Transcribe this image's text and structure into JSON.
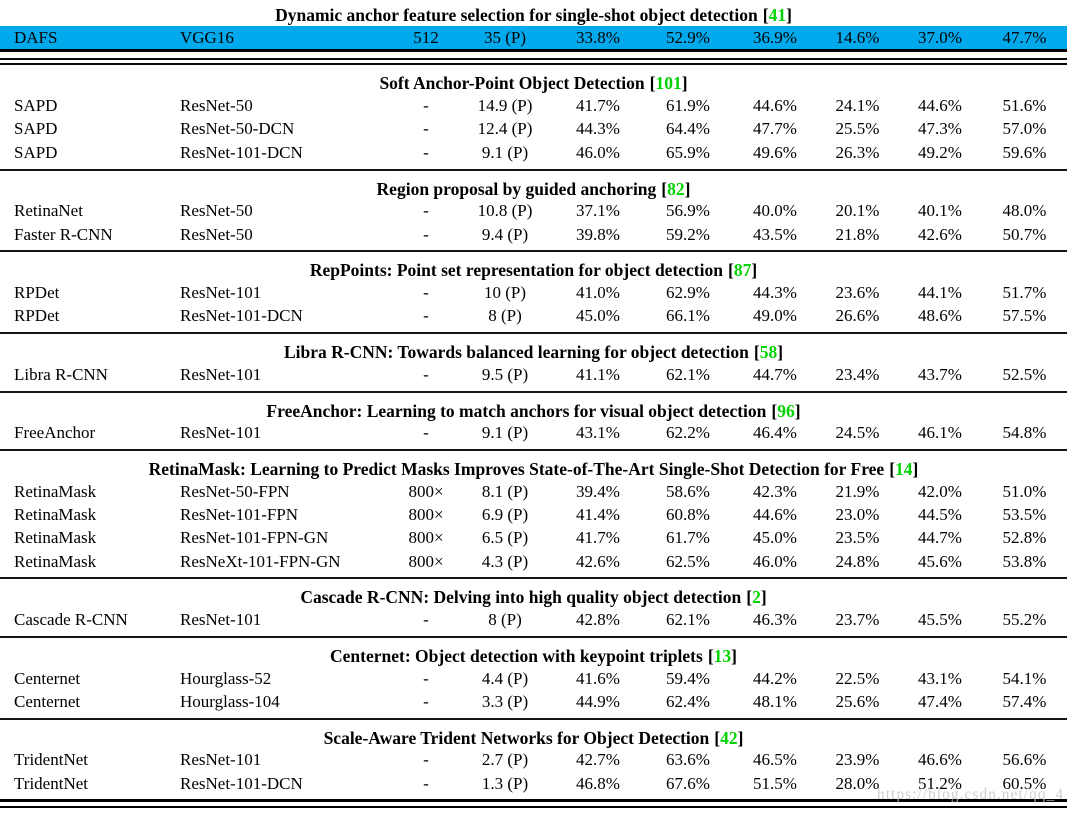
{
  "page": {
    "watermark": "https://blog.csdn.net/qq_4",
    "highlight_color": "#00a8ec",
    "citation_color": "#00d400"
  },
  "sections": [
    {
      "title": "Dynamic anchor feature selection for single-shot object detection",
      "citation": "41",
      "separator": "heavy",
      "rows": [
        {
          "highlighted": true,
          "cells": [
            "DAFS",
            "VGG16",
            "512",
            "35 (P)",
            "33.8%",
            "52.9%",
            "36.9%",
            "14.6%",
            "37.0%",
            "47.7%"
          ]
        }
      ]
    },
    {
      "title": "Soft Anchor-Point Object Detection",
      "citation": "101",
      "separator": "line",
      "rows": [
        {
          "highlighted": false,
          "cells": [
            "SAPD",
            "ResNet-50",
            "-",
            "14.9 (P)",
            "41.7%",
            "61.9%",
            "44.6%",
            "24.1%",
            "44.6%",
            "51.6%"
          ]
        },
        {
          "highlighted": false,
          "cells": [
            "SAPD",
            "ResNet-50-DCN",
            "-",
            "12.4 (P)",
            "44.3%",
            "64.4%",
            "47.7%",
            "25.5%",
            "47.3%",
            "57.0%"
          ]
        },
        {
          "highlighted": false,
          "cells": [
            "SAPD",
            "ResNet-101-DCN",
            "-",
            "9.1 (P)",
            "46.0%",
            "65.9%",
            "49.6%",
            "26.3%",
            "49.2%",
            "59.6%"
          ]
        }
      ]
    },
    {
      "title": "Region proposal by guided anchoring",
      "citation": "82",
      "separator": "line",
      "rows": [
        {
          "highlighted": false,
          "cells": [
            "RetinaNet",
            "ResNet-50",
            "-",
            "10.8 (P)",
            "37.1%",
            "56.9%",
            "40.0%",
            "20.1%",
            "40.1%",
            "48.0%"
          ]
        },
        {
          "highlighted": false,
          "cells": [
            "Faster R-CNN",
            "ResNet-50",
            "-",
            "9.4 (P)",
            "39.8%",
            "59.2%",
            "43.5%",
            "21.8%",
            "42.6%",
            "50.7%"
          ]
        }
      ]
    },
    {
      "title": "RepPoints: Point set representation for object detection",
      "citation": "87",
      "separator": "line",
      "rows": [
        {
          "highlighted": false,
          "cells": [
            "RPDet",
            "ResNet-101",
            "-",
            "10 (P)",
            "41.0%",
            "62.9%",
            "44.3%",
            "23.6%",
            "44.1%",
            "51.7%"
          ]
        },
        {
          "highlighted": false,
          "cells": [
            "RPDet",
            "ResNet-101-DCN",
            "-",
            "8 (P)",
            "45.0%",
            "66.1%",
            "49.0%",
            "26.6%",
            "48.6%",
            "57.5%"
          ]
        }
      ]
    },
    {
      "title": "Libra R-CNN: Towards balanced learning for object detection",
      "citation": "58",
      "separator": "line",
      "rows": [
        {
          "highlighted": false,
          "cells": [
            "Libra R-CNN",
            "ResNet-101",
            "-",
            "9.5 (P)",
            "41.1%",
            "62.1%",
            "44.7%",
            "23.4%",
            "43.7%",
            "52.5%"
          ]
        }
      ]
    },
    {
      "title": "FreeAnchor: Learning to match anchors for visual object detection",
      "citation": "96",
      "separator": "line",
      "rows": [
        {
          "highlighted": false,
          "cells": [
            "FreeAnchor",
            "ResNet-101",
            "-",
            "9.1 (P)",
            "43.1%",
            "62.2%",
            "46.4%",
            "24.5%",
            "46.1%",
            "54.8%"
          ]
        }
      ]
    },
    {
      "title": "RetinaMask: Learning to Predict Masks Improves State-of-The-Art Single-Shot Detection for Free",
      "citation": "14",
      "separator": "line",
      "rows": [
        {
          "highlighted": false,
          "cells": [
            "RetinaMask",
            "ResNet-50-FPN",
            "800×",
            "8.1 (P)",
            "39.4%",
            "58.6%",
            "42.3%",
            "21.9%",
            "42.0%",
            "51.0%"
          ]
        },
        {
          "highlighted": false,
          "cells": [
            "RetinaMask",
            "ResNet-101-FPN",
            "800×",
            "6.9 (P)",
            "41.4%",
            "60.8%",
            "44.6%",
            "23.0%",
            "44.5%",
            "53.5%"
          ]
        },
        {
          "highlighted": false,
          "cells": [
            "RetinaMask",
            "ResNet-101-FPN-GN",
            "800×",
            "6.5 (P)",
            "41.7%",
            "61.7%",
            "45.0%",
            "23.5%",
            "44.7%",
            "52.8%"
          ]
        },
        {
          "highlighted": false,
          "cells": [
            "RetinaMask",
            "ResNeXt-101-FPN-GN",
            "800×",
            "4.3 (P)",
            "42.6%",
            "62.5%",
            "46.0%",
            "24.8%",
            "45.6%",
            "53.8%"
          ]
        }
      ]
    },
    {
      "title": "Cascade R-CNN: Delving into high quality object detection",
      "citation": "2",
      "separator": "line",
      "rows": [
        {
          "highlighted": false,
          "cells": [
            "Cascade R-CNN",
            "ResNet-101",
            "-",
            "8 (P)",
            "42.8%",
            "62.1%",
            "46.3%",
            "23.7%",
            "45.5%",
            "55.2%"
          ]
        }
      ]
    },
    {
      "title": "Centernet: Object detection with keypoint triplets",
      "citation": "13",
      "separator": "line",
      "rows": [
        {
          "highlighted": false,
          "cells": [
            "Centernet",
            "Hourglass-52",
            "-",
            "4.4 (P)",
            "41.6%",
            "59.4%",
            "44.2%",
            "22.5%",
            "43.1%",
            "54.1%"
          ]
        },
        {
          "highlighted": false,
          "cells": [
            "Centernet",
            "Hourglass-104",
            "-",
            "3.3 (P)",
            "44.9%",
            "62.4%",
            "48.1%",
            "25.6%",
            "47.4%",
            "57.4%"
          ]
        }
      ]
    },
    {
      "title": "Scale-Aware Trident Networks for Object Detection",
      "citation": "42",
      "separator": "bottom",
      "rows": [
        {
          "highlighted": false,
          "cells": [
            "TridentNet",
            "ResNet-101",
            "-",
            "2.7 (P)",
            "42.7%",
            "63.6%",
            "46.5%",
            "23.9%",
            "46.6%",
            "56.6%"
          ]
        },
        {
          "highlighted": false,
          "cells": [
            "TridentNet",
            "ResNet-101-DCN",
            "-",
            "1.3 (P)",
            "46.8%",
            "67.6%",
            "51.5%",
            "28.0%",
            "51.2%",
            "60.5%"
          ]
        }
      ]
    }
  ]
}
